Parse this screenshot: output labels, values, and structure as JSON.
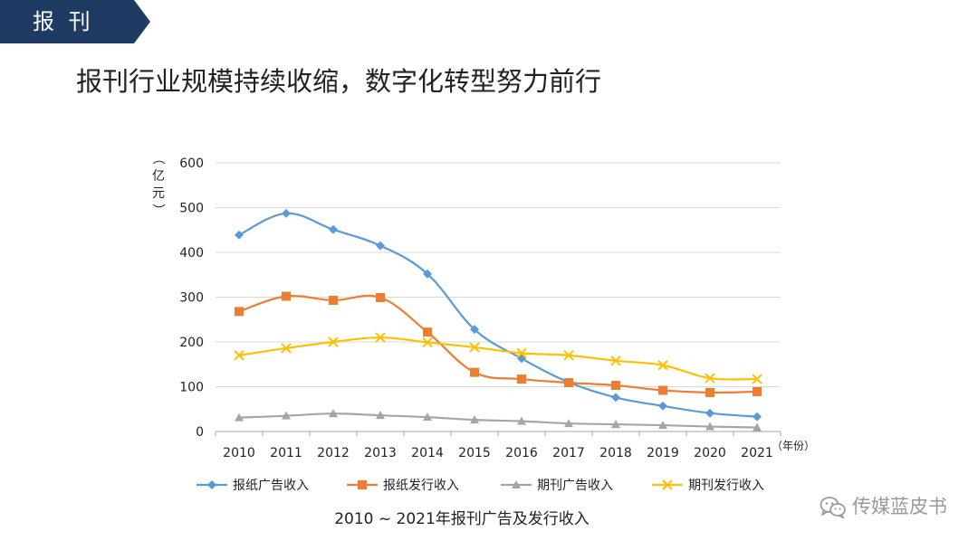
{
  "tag": {
    "label": "报 刊",
    "color": "#1f3a63"
  },
  "headline": "报刊行业规模持续收缩，数字化转型努力前行",
  "caption": "2010 ~ 2021年报刊广告及发行收入",
  "watermark": {
    "text": "传媒蓝皮书",
    "icon": "wechat-icon"
  },
  "chart_data": {
    "type": "line",
    "title": "",
    "xlabel": "（年份）",
    "ylabel": "（亿元）",
    "categories": [
      "2010",
      "2011",
      "2012",
      "2013",
      "2014",
      "2015",
      "2016",
      "2017",
      "2018",
      "2019",
      "2020",
      "2021"
    ],
    "ylim": [
      0,
      600
    ],
    "yticks": [
      0,
      100,
      200,
      300,
      400,
      500,
      600
    ],
    "grid": true,
    "legend": "bottom",
    "series": [
      {
        "name": "报纸广告收入",
        "color": "#5b9bd5",
        "marker": "diamond",
        "values": [
          439,
          487,
          451,
          415,
          352,
          228,
          163,
          110,
          76,
          57,
          41,
          33
        ]
      },
      {
        "name": "报纸发行收入",
        "color": "#ed7d31",
        "marker": "square",
        "values": [
          268,
          302,
          293,
          299,
          222,
          132,
          117,
          109,
          103,
          92,
          87,
          89
        ]
      },
      {
        "name": "期刊广告收入",
        "color": "#a5a5a5",
        "marker": "triangle",
        "values": [
          31,
          35,
          40,
          36,
          32,
          26,
          23,
          18,
          16,
          14,
          11,
          9
        ]
      },
      {
        "name": "期刊发行收入",
        "color": "#ffc000",
        "marker": "cross",
        "values": [
          170,
          186,
          200,
          210,
          199,
          188,
          175,
          170,
          158,
          148,
          119,
          117
        ]
      }
    ]
  }
}
